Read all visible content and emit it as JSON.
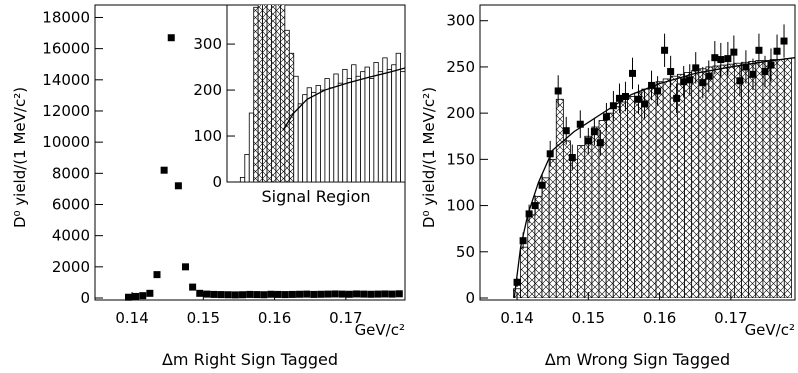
{
  "chart_data": [
    {
      "type": "scatter",
      "ylabel": "D⁰ yield/(1 MeV/c²)",
      "xunit": "GeV/c²",
      "title": "Δm Right Sign Tagged",
      "xlim": [
        0.1348,
        0.1783
      ],
      "ylim": [
        0,
        18800
      ],
      "xticks": [
        0.14,
        0.15,
        0.16,
        0.17
      ],
      "yticks": [
        0,
        2000,
        4000,
        6000,
        8000,
        10000,
        12000,
        14000,
        16000,
        18000
      ],
      "color": "#000000",
      "x": [
        0.1395,
        0.1405,
        0.1415,
        0.1425,
        0.1435,
        0.1445,
        0.1455,
        0.1465,
        0.1475,
        0.1485,
        0.1495,
        0.1505,
        0.1515,
        0.1525,
        0.1535,
        0.1545,
        0.1555,
        0.1565,
        0.1575,
        0.1585,
        0.1595,
        0.1605,
        0.1615,
        0.1625,
        0.1635,
        0.1645,
        0.1655,
        0.1665,
        0.1675,
        0.1685,
        0.1695,
        0.1705,
        0.1715,
        0.1725,
        0.1735,
        0.1745,
        0.1755,
        0.1765,
        0.1775
      ],
      "values": [
        50,
        100,
        150,
        300,
        1500,
        8200,
        16700,
        7200,
        2000,
        700,
        300,
        250,
        230,
        220,
        210,
        200,
        210,
        230,
        220,
        210,
        240,
        230,
        220,
        230,
        240,
        250,
        230,
        240,
        250,
        260,
        250,
        240,
        260,
        250,
        240,
        250,
        260,
        250,
        270
      ]
    },
    {
      "type": "histogram",
      "xlabel": "Signal Region",
      "xlim": [
        0.138,
        0.178
      ],
      "ylim": [
        0,
        385
      ],
      "yticks": [
        0,
        100,
        200,
        300
      ],
      "signal_region": [
        0.144,
        0.153
      ],
      "bins": [
        0.141,
        0.142,
        0.143,
        0.144,
        0.145,
        0.146,
        0.147,
        0.148,
        0.149,
        0.15,
        0.151,
        0.152,
        0.153,
        0.154,
        0.155,
        0.156,
        0.157,
        0.158,
        0.159,
        0.16,
        0.161,
        0.162,
        0.163,
        0.164,
        0.165,
        0.166,
        0.167,
        0.168,
        0.169,
        0.17,
        0.171,
        0.172,
        0.173,
        0.174,
        0.175,
        0.176,
        0.177,
        0.178
      ],
      "counts": [
        10,
        60,
        150,
        380,
        400,
        400,
        400,
        400,
        400,
        400,
        330,
        280,
        230,
        170,
        190,
        205,
        195,
        210,
        200,
        225,
        205,
        235,
        215,
        245,
        225,
        255,
        230,
        240,
        250,
        225,
        260,
        240,
        270,
        245,
        255,
        280,
        240,
        270
      ],
      "fit": {
        "x": [
          0.1506,
          0.153,
          0.156,
          0.16,
          0.165,
          0.17,
          0.175,
          0.178
        ],
        "y": [
          113,
          150,
          180,
          200,
          215,
          228,
          240,
          248
        ]
      }
    },
    {
      "type": "scatter",
      "ylabel": "D⁰ yield/(1 MeV/c²)",
      "xunit": "GeV/c²",
      "title": "Δm Wrong Sign Tagged",
      "xlim": [
        0.1348,
        0.179
      ],
      "ylim": [
        0,
        317
      ],
      "xticks": [
        0.14,
        0.15,
        0.16,
        0.17
      ],
      "yticks": [
        0,
        50,
        100,
        150,
        200,
        250,
        300
      ],
      "color": "#000000",
      "x": [
        0.14,
        0.14085,
        0.14169,
        0.14254,
        0.14352,
        0.14465,
        0.14577,
        0.1469,
        0.14775,
        0.14887,
        0.15,
        0.15085,
        0.15169,
        0.15254,
        0.15352,
        0.15437,
        0.15521,
        0.1562,
        0.15704,
        0.15789,
        0.15887,
        0.15972,
        0.1607,
        0.16155,
        0.16239,
        0.16338,
        0.16423,
        0.16507,
        0.16606,
        0.1669,
        0.16775,
        0.16859,
        0.16958,
        0.17042,
        0.17127,
        0.17211,
        0.1731,
        0.17394,
        0.17479,
        0.17563,
        0.17648,
        0.17746
      ],
      "values": [
        17,
        62,
        91,
        100,
        122,
        156,
        224,
        181,
        152,
        188,
        170,
        180,
        168,
        196,
        208,
        216,
        218,
        243,
        215,
        210,
        230,
        224,
        268,
        245,
        216,
        234,
        236,
        249,
        233,
        240,
        260,
        258,
        259,
        266,
        235,
        250,
        242,
        268,
        245,
        252,
        267,
        278
      ],
      "errors": [
        5,
        9,
        10,
        11,
        12,
        14,
        17,
        15,
        14,
        15,
        14,
        15,
        14,
        15,
        16,
        16,
        16,
        17,
        16,
        16,
        16,
        16,
        18,
        17,
        16,
        17,
        17,
        17,
        17,
        17,
        18,
        18,
        18,
        18,
        17,
        18,
        17,
        18,
        17,
        18,
        18,
        18
      ],
      "histogram": {
        "bins": [
          0.1395,
          0.1405,
          0.1415,
          0.1425,
          0.1435,
          0.1445,
          0.1455,
          0.1465,
          0.1475,
          0.1485,
          0.1495,
          0.1505,
          0.1515,
          0.1525,
          0.1535,
          0.1545,
          0.1555,
          0.1565,
          0.1575,
          0.1585,
          0.1595,
          0.1605,
          0.1615,
          0.1625,
          0.1635,
          0.1645,
          0.1655,
          0.1665,
          0.1675,
          0.1685,
          0.1695,
          0.1705,
          0.1715,
          0.1725,
          0.1735,
          0.1745,
          0.1755,
          0.1765,
          0.1775,
          0.1785
        ],
        "counts": [
          10,
          55,
          90,
          110,
          130,
          150,
          215,
          170,
          150,
          165,
          175,
          185,
          192,
          200,
          207,
          212,
          218,
          222,
          226,
          230,
          234,
          237,
          240,
          242,
          244,
          246,
          248,
          250,
          251,
          252,
          253,
          254,
          255,
          256,
          257,
          257,
          258,
          258,
          259
        ]
      },
      "fit": {
        "x": [
          0.1396,
          0.1405,
          0.1415,
          0.143,
          0.145,
          0.148,
          0.152,
          0.156,
          0.16,
          0.165,
          0.17,
          0.175,
          0.179
        ],
        "y": [
          0,
          55,
          90,
          125,
          160,
          180,
          200,
          220,
          232,
          243,
          250,
          256,
          260
        ]
      }
    }
  ]
}
